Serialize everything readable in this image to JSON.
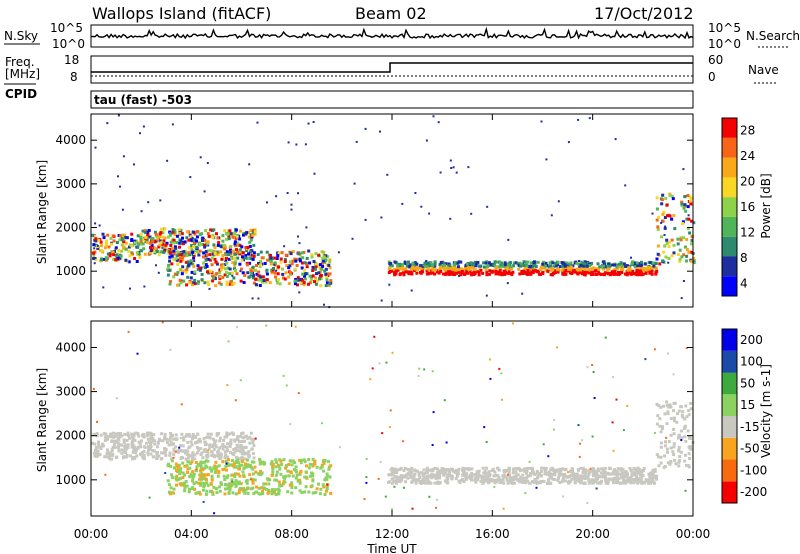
{
  "header": {
    "station": "Wallops Island (fitACF)",
    "beam": "Beam 02",
    "date": "17/Oct/2012"
  },
  "noise_panel": {
    "left_label": "N.Sky",
    "right_label": "N.Search",
    "left_ticks": [
      "10^5",
      "10^0"
    ],
    "right_ticks": [
      "10^5",
      "10^0"
    ]
  },
  "freq_panel": {
    "left_label": "Freq.",
    "left_unit": "[MHz]",
    "left_sublabel": "CPID",
    "right_label": "Nave",
    "left_ticks": [
      "18",
      "8"
    ],
    "right_ticks": [
      "60",
      "0"
    ],
    "cpid_text": "tau (fast) -503"
  },
  "chart_data": [
    {
      "type": "heatmap",
      "name": "power",
      "ylabel": "Slant Range [km]",
      "y_ticks": [
        "4000",
        "3000",
        "2000",
        "1000"
      ],
      "x_ticks": [
        "00:00",
        "04:00",
        "08:00",
        "12:00",
        "16:00",
        "20:00",
        "00:00"
      ],
      "ylim": [
        180,
        4600
      ],
      "xlim_hours": [
        0,
        24
      ],
      "colorbar": {
        "label": "Power [dB]",
        "ticks": [
          "28",
          "24",
          "20",
          "16",
          "12",
          "8",
          "4"
        ],
        "colors": [
          "#0000ff",
          "#1c2ea0",
          "#2e8a6e",
          "#4fb45a",
          "#8ed24a",
          "#f8d824",
          "#f8a818",
          "#f86418",
          "#f40000"
        ]
      },
      "bands": [
        {
          "t0": 0.0,
          "t1": 2.0,
          "r0": 1250,
          "r1": 1900,
          "level": "mixed"
        },
        {
          "t0": 2.0,
          "t1": 6.5,
          "r0": 1400,
          "r1": 2000,
          "level": "mixed"
        },
        {
          "t0": 3.0,
          "t1": 9.5,
          "r0": 700,
          "r1": 1500,
          "level": "mixed"
        },
        {
          "t0": 11.8,
          "t1": 22.5,
          "r0": 950,
          "r1": 1250,
          "level": "high"
        },
        {
          "t0": 22.5,
          "t1": 24.0,
          "r0": 1200,
          "r1": 2800,
          "level": "mixed"
        }
      ]
    },
    {
      "type": "heatmap",
      "name": "velocity",
      "ylabel": "Slant Range [km]",
      "y_ticks": [
        "4000",
        "3000",
        "2000",
        "1000"
      ],
      "x_ticks": [
        "00:00",
        "04:00",
        "08:00",
        "12:00",
        "16:00",
        "20:00",
        "00:00"
      ],
      "xlabel": "Time UT",
      "ylim": [
        180,
        4600
      ],
      "xlim_hours": [
        0,
        24
      ],
      "colorbar": {
        "label": "Velocity [m s-1]",
        "ticks": [
          "200",
          "100",
          "50",
          "15",
          "-15",
          "-50",
          "-100",
          "-200"
        ],
        "colors": [
          "#f40000",
          "#f86a10",
          "#f8a420",
          "#c8c8c0",
          "#8cd260",
          "#3caa3c",
          "#1c4aa8",
          "#0000e8"
        ]
      },
      "bands": [
        {
          "t0": 0.0,
          "t1": 6.5,
          "r0": 1500,
          "r1": 2100,
          "level": "ground"
        },
        {
          "t0": 3.0,
          "t1": 9.5,
          "r0": 700,
          "r1": 1500,
          "level": "green"
        },
        {
          "t0": 11.8,
          "t1": 22.5,
          "r0": 950,
          "r1": 1300,
          "level": "ground"
        },
        {
          "t0": 22.5,
          "t1": 24.0,
          "r0": 1300,
          "r1": 2800,
          "level": "ground"
        }
      ]
    }
  ]
}
